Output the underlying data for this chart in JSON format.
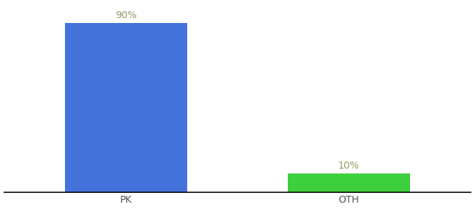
{
  "categories": [
    "PK",
    "OTH"
  ],
  "values": [
    90,
    10
  ],
  "bar_colors": [
    "#4472db",
    "#3ecf3e"
  ],
  "label_texts": [
    "90%",
    "10%"
  ],
  "background_color": "#ffffff",
  "bar_width": 0.55,
  "ylim": [
    0,
    100
  ],
  "label_fontsize": 10,
  "tick_fontsize": 10,
  "label_color": "#999966",
  "tick_color": "#555555"
}
